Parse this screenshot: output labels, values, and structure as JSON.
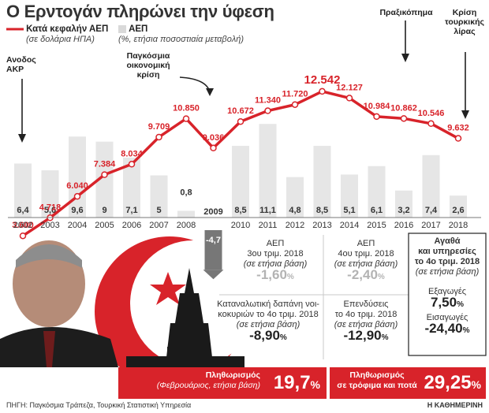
{
  "title": "Ο Ερντογάν πληρώνει την ύφεση",
  "legend": {
    "line_label": "Κατά κεφαλήν ΑΕΠ",
    "line_sub": "(σε δολάρια ΗΠΑ)",
    "bar_label": "ΑΕΠ",
    "bar_sub": "(%, ετήσια ποσοστιαία μεταβολή)"
  },
  "annotations": {
    "akp": "Ανοδος ΑΚΡ",
    "crisis": "Παγκόσμια οικονομική κρίση",
    "coup": "Πραξικόπημα",
    "lira": "Κρίση τουρκικής λίρας"
  },
  "chart_data": {
    "type": "bar+line",
    "categories": [
      "2002",
      "2003",
      "2004",
      "2005",
      "2006",
      "2007",
      "2008",
      "2009",
      "2010",
      "2011",
      "2012",
      "2013",
      "2014",
      "2015",
      "2016",
      "2017",
      "2018"
    ],
    "bar_values": [
      6.4,
      5.6,
      9.6,
      9,
      7.1,
      5,
      0.8,
      -4.7,
      8.5,
      11.1,
      4.8,
      8.5,
      5.1,
      6.1,
      3.2,
      7.4,
      2.6
    ],
    "bar_labels": [
      "6,4",
      "5,6",
      "9,6",
      "9",
      "7,1",
      "5",
      "0,8",
      "-4,7",
      "8,5",
      "11,1",
      "4,8",
      "8,5",
      "5,1",
      "6,1",
      "3,2",
      "7,4",
      "2,6"
    ],
    "line_values": [
      3600,
      4718,
      6040,
      7384,
      8034,
      9709,
      10850,
      9036,
      10672,
      11340,
      11720,
      12542,
      12127,
      10984,
      10862,
      10546,
      9632
    ],
    "line_labels": [
      "3.600",
      "4.718",
      "6.040",
      "7.384",
      "8.034",
      "9.709",
      "10.850",
      "9.036",
      "10.672",
      "11.340",
      "11.720",
      "12.542",
      "12.127",
      "10.984",
      "10.862",
      "10.546",
      "9.632"
    ],
    "colors": {
      "line": "#d8232a",
      "bar": "#e6e6e6",
      "axis_label": "#333333"
    }
  },
  "panel": {
    "gdp_q3": {
      "name": "ΑΕΠ",
      "period": "3ου τριμ. 2018",
      "basis": "(σε ετήσια βάση)",
      "value": "-1,60",
      "unit": "%"
    },
    "gdp_q4": {
      "name": "ΑΕΠ",
      "period": "4ου τριμ. 2018",
      "basis": "(σε ετήσια βάση)",
      "value": "-2,40",
      "unit": "%"
    },
    "consumption": {
      "name": "Καταναλωτική δαπάνη νοι-",
      "name2": "κοκυριών το 4ο τριμ. 2018",
      "basis": "(σε ετήσια βάση)",
      "value": "-8,90",
      "unit": "%"
    },
    "investment": {
      "name": "Επενδύσεις",
      "period": "το 4ο τριμ. 2018",
      "basis": "(σε ετήσια βάση)",
      "value": "-12,90",
      "unit": "%"
    },
    "trade": {
      "title1": "Αγαθά",
      "title2": "και υπηρεσίες",
      "title3": "το 4ο τριμ. 2018",
      "basis": "(σε ετήσια βάση)",
      "exports_label": "Εξαγωγές",
      "exports_value": "7,50",
      "exports_unit": "%",
      "imports_label": "Εισαγωγές",
      "imports_value": "-24,40",
      "imports_unit": "%"
    }
  },
  "inflation": {
    "label": "Πληθωρισμός",
    "sub": "(Φεβρουάριος, ετήσια βάση)",
    "value": "19,7",
    "unit": "%",
    "food_label": "Πληθωρισμός",
    "food_sub": "σε τρόφιμα και ποτά",
    "food_value": "29,25",
    "food_unit": "%"
  },
  "source": "ΠΗΓΗ: Παγκόσμια Τράπεζα, Τουρκική Στατιστική Υπηρεσία",
  "credit": "Η ΚΑΘΗΜΕΡΙΝΗ"
}
